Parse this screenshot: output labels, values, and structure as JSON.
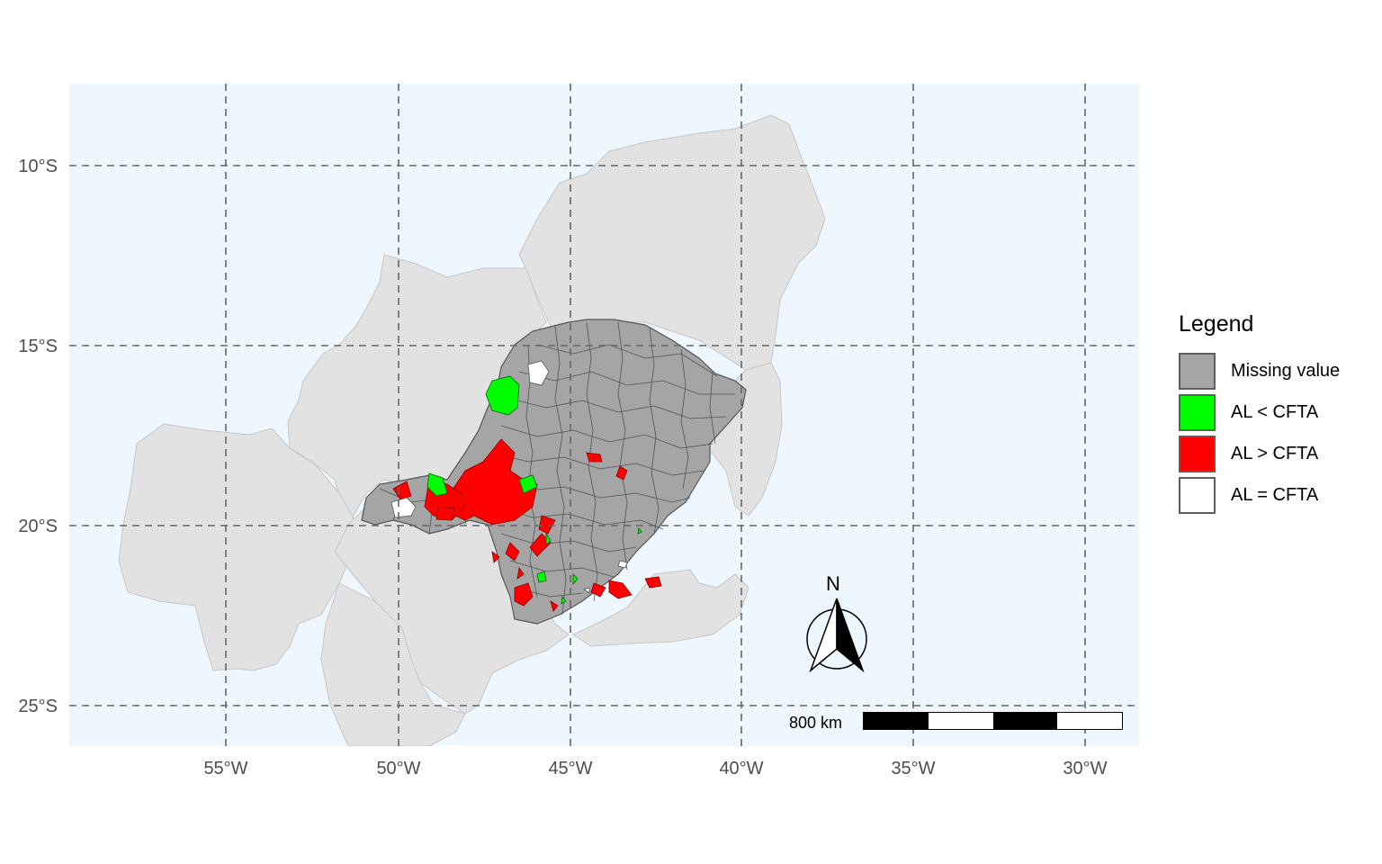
{
  "map": {
    "y_axis_labels": [
      "10°S",
      "15°S",
      "20°S",
      "25°S"
    ],
    "x_axis_labels": [
      "55°W",
      "50°W",
      "45°W",
      "40°W",
      "35°W",
      "30°W"
    ],
    "colors": {
      "panel_background": "#eef6fe",
      "grid": "#666666",
      "context_states": "#e2e2e2",
      "missing": "#a5a5a5",
      "al_lt_cfta": "#00ff00",
      "al_gt_cfta": "#ff0000",
      "al_eq_cfta": "#ffffff"
    }
  },
  "legend": {
    "title": "Legend",
    "items": [
      {
        "label": "Missing value",
        "color": "#a5a5a5"
      },
      {
        "label": "AL < CFTA",
        "color": "#00ff00"
      },
      {
        "label": "AL > CFTA",
        "color": "#ff0000"
      },
      {
        "label": "AL = CFTA",
        "color": "#ffffff"
      }
    ]
  },
  "north_arrow": {
    "label": "N"
  },
  "scale_bar": {
    "label": "800 km"
  }
}
